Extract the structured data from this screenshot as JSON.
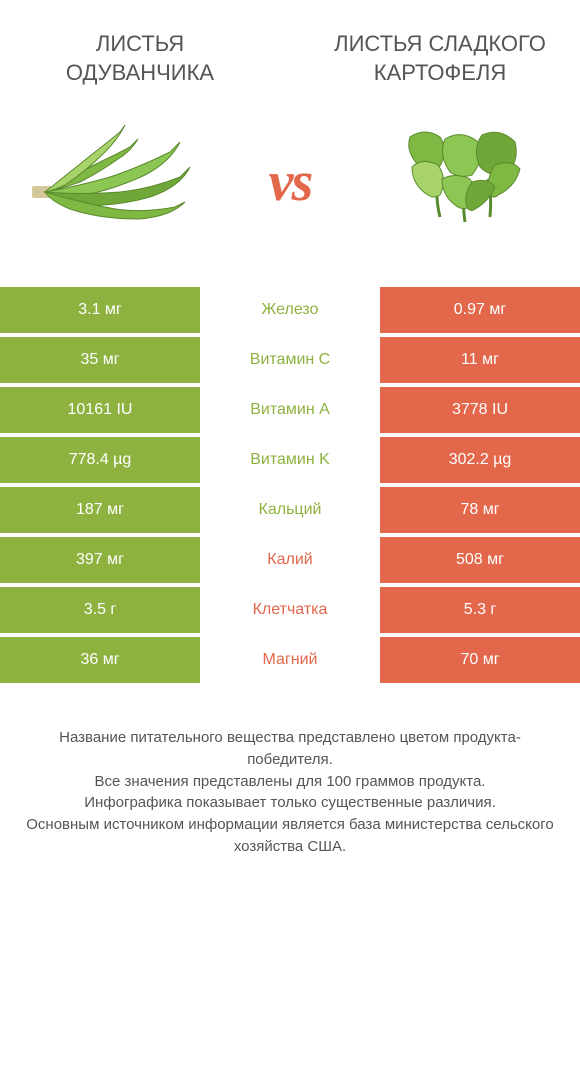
{
  "colors": {
    "green": "#8eb23f",
    "orange": "#e2674b",
    "white": "#ffffff",
    "text": "#555555",
    "leaf_light": "#a8d36a",
    "leaf_mid": "#7fb842",
    "leaf_dark": "#5a8a2e",
    "stem": "#d4c79a"
  },
  "food_left": {
    "title": "ЛИСТЬЯ ОДУВАНЧИКА"
  },
  "food_right": {
    "title": "ЛИСТЬЯ СЛАДКОГО КАРТОФЕЛЯ"
  },
  "vs": "vs",
  "rows": [
    {
      "left": "3.1 мг",
      "mid": "Железо",
      "right": "0.97 мг",
      "winner": "left"
    },
    {
      "left": "35 мг",
      "mid": "Витамин C",
      "right": "11 мг",
      "winner": "left"
    },
    {
      "left": "10161 IU",
      "mid": "Витамин A",
      "right": "3778 IU",
      "winner": "left"
    },
    {
      "left": "778.4 µg",
      "mid": "Витамин K",
      "right": "302.2 µg",
      "winner": "left"
    },
    {
      "left": "187 мг",
      "mid": "Кальций",
      "right": "78 мг",
      "winner": "left"
    },
    {
      "left": "397 мг",
      "mid": "Калий",
      "right": "508 мг",
      "winner": "right"
    },
    {
      "left": "3.5 г",
      "mid": "Клетчатка",
      "right": "5.3 г",
      "winner": "right"
    },
    {
      "left": "36 мг",
      "mid": "Магний",
      "right": "70 мг",
      "winner": "right"
    }
  ],
  "footer": {
    "line1": "Название питательного вещества представлено цветом продукта-победителя.",
    "line2": "Все значения представлены для 100 граммов продукта.",
    "line3": "Инфографика показывает только существенные различия.",
    "line4": "Основным источником информации является база министерства сельского хозяйства США."
  }
}
